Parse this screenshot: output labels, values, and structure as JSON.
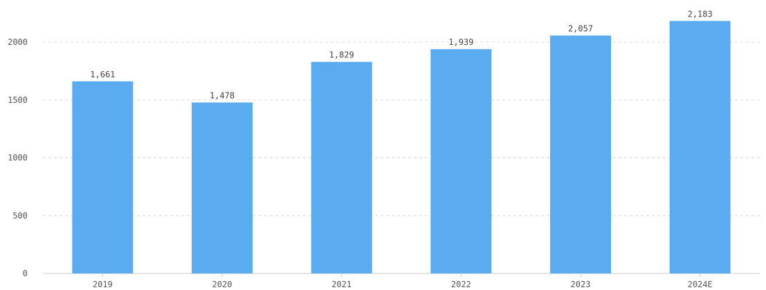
{
  "chart_data": {
    "type": "bar",
    "categories": [
      "2019",
      "2020",
      "2021",
      "2022",
      "2023",
      "2024E"
    ],
    "values": [
      1661,
      1478,
      1829,
      1939,
      2057,
      2183
    ],
    "data_labels": [
      "1,661",
      "1,478",
      "1,829",
      "1,939",
      "2,057",
      "2,183"
    ],
    "title": "",
    "xlabel": "",
    "ylabel": "",
    "ylim": [
      0,
      2000
    ],
    "yticks": [
      0,
      500,
      1000,
      1500,
      2000
    ],
    "ytick_labels": [
      "0",
      "500",
      "1000",
      "1500",
      "2000"
    ],
    "grid": true,
    "legend": "none",
    "colors": {
      "bar": "#5aabf0",
      "grid": "#d9d9d9",
      "axis": "#c8c8c8"
    }
  }
}
